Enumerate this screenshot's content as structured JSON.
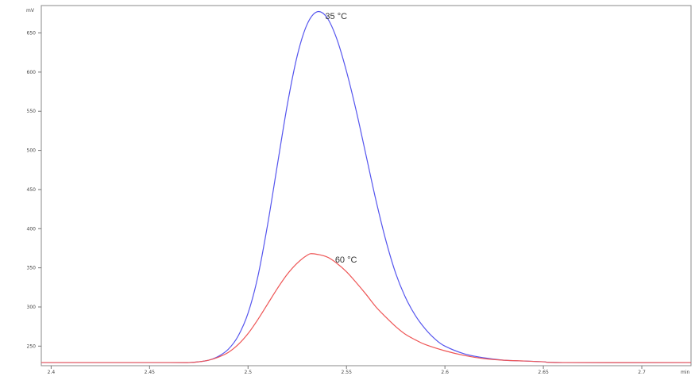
{
  "chart_data": {
    "type": "line",
    "y_unit": "mV",
    "x_unit": "min",
    "xlim": [
      2.395,
      2.725
    ],
    "ylim": [
      225,
      685
    ],
    "x_ticks": [
      {
        "value": 2.4,
        "label": "2.4"
      },
      {
        "value": 2.45,
        "label": "2.45"
      },
      {
        "value": 2.5,
        "label": "2.5"
      },
      {
        "value": 2.55,
        "label": "2.55"
      },
      {
        "value": 2.6,
        "label": "2.6"
      },
      {
        "value": 2.65,
        "label": "2.65"
      },
      {
        "value": 2.7,
        "label": "2.7"
      }
    ],
    "y_ticks": [
      {
        "value": 250,
        "label": "250"
      },
      {
        "value": 300,
        "label": "300"
      },
      {
        "value": 350,
        "label": "350"
      },
      {
        "value": 400,
        "label": "400"
      },
      {
        "value": 450,
        "label": "450"
      },
      {
        "value": 500,
        "label": "500"
      },
      {
        "value": 550,
        "label": "550"
      },
      {
        "value": 600,
        "label": "600"
      },
      {
        "value": 650,
        "label": "650"
      }
    ],
    "series": [
      {
        "name": "35 °C",
        "color": "#5555ee",
        "points": [
          [
            2.395,
            229
          ],
          [
            2.46,
            229
          ],
          [
            2.47,
            229
          ],
          [
            2.475,
            230
          ],
          [
            2.48,
            232
          ],
          [
            2.485,
            237
          ],
          [
            2.49,
            246
          ],
          [
            2.495,
            263
          ],
          [
            2.5,
            292
          ],
          [
            2.505,
            339
          ],
          [
            2.51,
            406
          ],
          [
            2.515,
            483
          ],
          [
            2.52,
            559
          ],
          [
            2.525,
            621
          ],
          [
            2.53,
            661
          ],
          [
            2.535,
            677
          ],
          [
            2.54,
            670
          ],
          [
            2.545,
            643
          ],
          [
            2.55,
            601
          ],
          [
            2.555,
            550
          ],
          [
            2.56,
            493
          ],
          [
            2.565,
            436
          ],
          [
            2.57,
            385
          ],
          [
            2.575,
            343
          ],
          [
            2.58,
            312
          ],
          [
            2.585,
            289
          ],
          [
            2.59,
            272
          ],
          [
            2.595,
            259
          ],
          [
            2.6,
            250
          ],
          [
            2.61,
            240
          ],
          [
            2.62,
            235
          ],
          [
            2.63,
            232
          ],
          [
            2.64,
            231
          ],
          [
            2.65,
            230
          ],
          [
            2.66,
            229
          ],
          [
            2.725,
            229
          ]
        ]
      },
      {
        "name": "60 °C",
        "color": "#ee5555",
        "points": [
          [
            2.395,
            229
          ],
          [
            2.46,
            229
          ],
          [
            2.47,
            229
          ],
          [
            2.475,
            230
          ],
          [
            2.48,
            232
          ],
          [
            2.485,
            236
          ],
          [
            2.49,
            242
          ],
          [
            2.495,
            252
          ],
          [
            2.5,
            266
          ],
          [
            2.505,
            284
          ],
          [
            2.51,
            304
          ],
          [
            2.515,
            324
          ],
          [
            2.52,
            342
          ],
          [
            2.525,
            356
          ],
          [
            2.53,
            366
          ],
          [
            2.533,
            368
          ],
          [
            2.54,
            364
          ],
          [
            2.545,
            356
          ],
          [
            2.55,
            345
          ],
          [
            2.555,
            331
          ],
          [
            2.56,
            316
          ],
          [
            2.565,
            300
          ],
          [
            2.57,
            287
          ],
          [
            2.575,
            275
          ],
          [
            2.58,
            265
          ],
          [
            2.585,
            258
          ],
          [
            2.59,
            252
          ],
          [
            2.6,
            244
          ],
          [
            2.61,
            238
          ],
          [
            2.62,
            234
          ],
          [
            2.63,
            232
          ],
          [
            2.64,
            231
          ],
          [
            2.65,
            230
          ],
          [
            2.66,
            229
          ],
          [
            2.725,
            229
          ]
        ]
      }
    ],
    "annotations": [
      {
        "text": "35 °C",
        "x": 2.54,
        "y": 677
      },
      {
        "text": "60 °C",
        "x": 2.545,
        "y": 366
      }
    ]
  }
}
